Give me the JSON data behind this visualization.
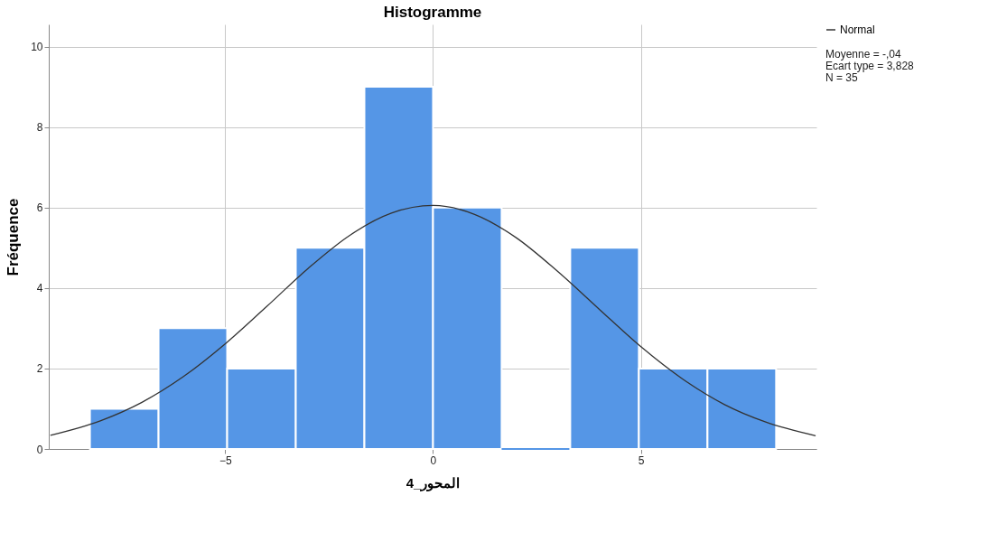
{
  "chart_data": {
    "type": "histogram",
    "title": "Histogramme",
    "xlabel": "المحور_4",
    "ylabel": "Fréquence",
    "bins": [
      -8.25,
      -6.6,
      -4.95,
      -3.3,
      -1.65,
      0,
      1.65,
      3.3,
      4.95,
      6.6,
      8.25
    ],
    "values": [
      1,
      3,
      2,
      5,
      9,
      6,
      0,
      5,
      2,
      2
    ],
    "color": "#5596e6",
    "series": [
      {
        "name": "Normal",
        "type": "line",
        "color": "#333333",
        "x": [
          -9.2,
          -8,
          -7,
          -6,
          -5,
          -4,
          -3,
          -2,
          -1,
          0,
          1,
          2,
          3,
          4,
          5,
          6,
          7,
          8,
          9.2
        ],
        "values": [
          0.34,
          0.7,
          1.16,
          1.8,
          2.61,
          3.54,
          4.49,
          5.31,
          5.86,
          6.05,
          5.83,
          5.25,
          4.41,
          3.47,
          2.54,
          1.74,
          1.11,
          0.67,
          0.33
        ]
      }
    ],
    "xlim": [
      -9.24,
      9.22
    ],
    "ylim": [
      0,
      10.55
    ],
    "xticks": [
      -5,
      0,
      5
    ],
    "yticks": [
      0,
      2,
      4,
      6,
      8,
      10
    ],
    "grid": true,
    "legend": "top right",
    "line_style": "solid",
    "annotations": [
      "Moyenne = -,04",
      "Ecart type = 3,828",
      "N = 35"
    ]
  }
}
